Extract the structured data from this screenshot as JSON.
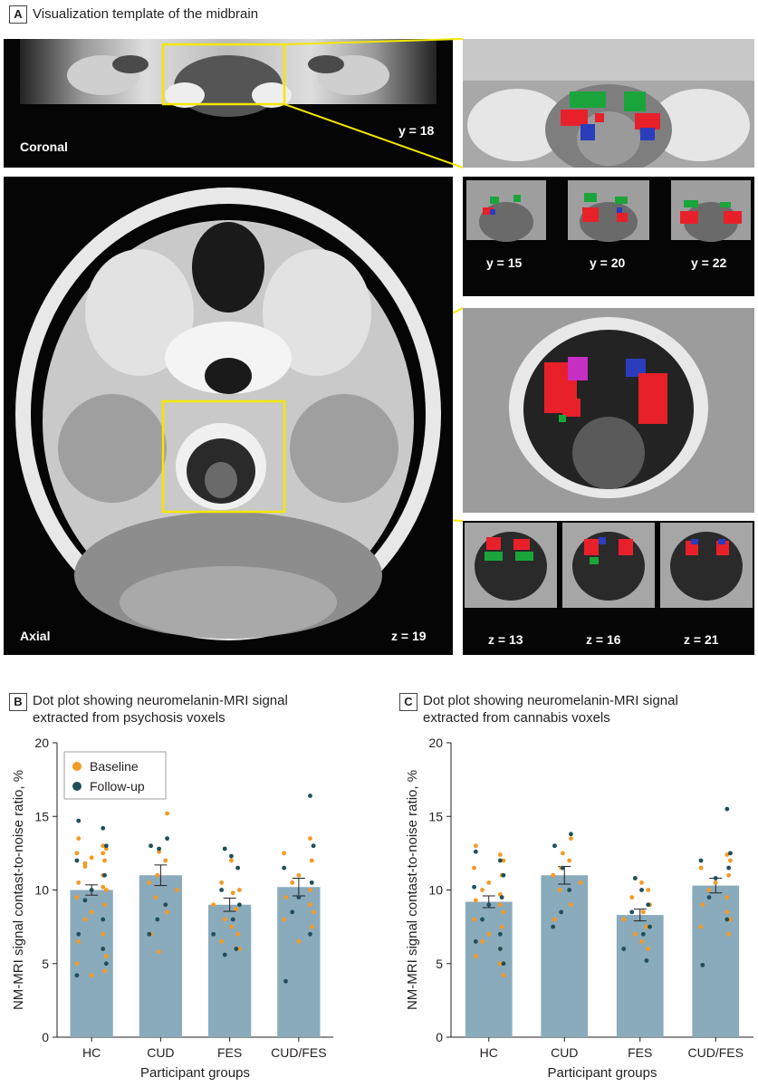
{
  "panel_a": {
    "letter": "A",
    "title": "Visualization template of the midbrain",
    "coronal_label": "Coronal",
    "coronal_slice": "y = 18",
    "axial_label": "Axial",
    "axial_slice": "z = 19",
    "coronal_insets": [
      "y = 15",
      "y = 20",
      "y = 22"
    ],
    "axial_insets": [
      "z = 13",
      "z = 16",
      "z = 21"
    ],
    "colors": {
      "highlight": "#f3e600",
      "psychosis": "#e8202a",
      "cannabis": "#1aa53b",
      "overlap": "#2b3dbd"
    }
  },
  "chart_data": [
    {
      "type": "bar",
      "letter": "B",
      "title_line1": "Dot plot showing neuromelanin-MRI signal",
      "title_line2": "extracted from psychosis voxels",
      "categories": [
        "HC",
        "CUD",
        "FES",
        "CUD/FES"
      ],
      "values": [
        10.0,
        11.0,
        9.0,
        10.2
      ],
      "errors": [
        0.35,
        0.7,
        0.45,
        0.6
      ],
      "xlabel": "Participant groups",
      "ylabel": "NM-MRI signal contast-to-noise ratio, %",
      "ylim": [
        0,
        20
      ],
      "yticks": [
        0,
        5,
        10,
        15,
        20
      ],
      "legend": {
        "placement": "top-left",
        "entries": [
          "Baseline",
          "Follow-up"
        ]
      },
      "colors": {
        "bar": "#8aabbc",
        "baseline": "#f39a25",
        "followup": "#1f4f5c"
      },
      "points": {
        "baseline": [
          [
            13.5,
            13.0,
            12.8,
            12.5,
            12.0,
            12.2,
            11.6,
            11.0,
            10.5,
            10.2,
            10.0,
            9.5,
            9.0,
            8.5,
            8.0,
            7.0,
            6.5,
            6.0,
            5.5,
            5.0,
            4.5,
            4.2,
            11.8,
            12.5
          ],
          [
            15.2,
            13.0,
            12.6,
            12.0,
            11.0,
            10.5,
            10.0,
            9.5,
            8.5,
            7.0,
            5.8
          ],
          [
            12.8,
            12.0,
            11.5,
            10.5,
            10.0,
            9.8,
            9.0,
            8.7,
            8.0,
            7.5,
            7.0,
            6.5,
            6.0
          ],
          [
            13.5,
            13.0,
            12.5,
            12.0,
            11.0,
            10.5,
            10.0,
            9.5,
            9.0,
            8.5,
            8.0,
            7.5,
            6.5
          ]
        ],
        "followup": [
          [
            14.7,
            14.2,
            13.0,
            12.0,
            11.0,
            10.0,
            9.3,
            8.0,
            7.0,
            6.0,
            5.0,
            4.2
          ],
          [
            13.5,
            13.0,
            12.8,
            9.0,
            8.0,
            7.0
          ],
          [
            12.8,
            12.3,
            11.5,
            10.0,
            9.0,
            8.0,
            7.0,
            6.0,
            5.6
          ],
          [
            16.4,
            13.0,
            11.5,
            10.5,
            9.5,
            8.5,
            7.0,
            3.8
          ]
        ]
      }
    },
    {
      "type": "bar",
      "letter": "C",
      "title_line1": "Dot plot showing neuromelanin-MRI signal",
      "title_line2": "extracted from cannabis voxels",
      "categories": [
        "HC",
        "CUD",
        "FES",
        "CUD/FES"
      ],
      "values": [
        9.2,
        11.0,
        8.3,
        10.3
      ],
      "errors": [
        0.4,
        0.6,
        0.4,
        0.5
      ],
      "xlabel": "Participant groups",
      "ylabel": "NM-MRI signal contast-to-noise ratio, %",
      "ylim": [
        0,
        20
      ],
      "yticks": [
        0,
        5,
        10,
        15,
        20
      ],
      "colors": {
        "bar": "#8aabbc",
        "baseline": "#f39a25",
        "followup": "#1f4f5c"
      },
      "points": {
        "baseline": [
          [
            13.0,
            12.4,
            12.0,
            11.5,
            11.0,
            10.5,
            10.0,
            9.7,
            9.3,
            9.0,
            8.5,
            8.0,
            7.5,
            7.0,
            6.5,
            6.0,
            5.5,
            5.0,
            4.2
          ],
          [
            13.5,
            13.0,
            12.5,
            12.0,
            11.5,
            11.0,
            10.5,
            10.0,
            9.0,
            8.0
          ],
          [
            10.8,
            10.5,
            10.0,
            9.5,
            9.0,
            8.5,
            8.0,
            7.5,
            7.0,
            6.5,
            6.0
          ],
          [
            12.4,
            12.0,
            11.5,
            11.0,
            10.5,
            10.0,
            9.5,
            9.0,
            8.5,
            8.0,
            7.5,
            7.0
          ]
        ],
        "followup": [
          [
            12.6,
            12.0,
            11.0,
            10.2,
            9.5,
            9.0,
            8.0,
            7.0,
            6.5,
            6.0,
            5.0
          ],
          [
            13.8,
            13.0,
            11.5,
            10.0,
            8.5,
            7.5
          ],
          [
            10.8,
            10.0,
            9.0,
            8.5,
            7.5,
            7.0,
            6.0,
            5.2
          ],
          [
            15.5,
            12.5,
            12.0,
            11.5,
            10.8,
            9.5,
            8.0,
            4.9
          ]
        ]
      }
    }
  ]
}
